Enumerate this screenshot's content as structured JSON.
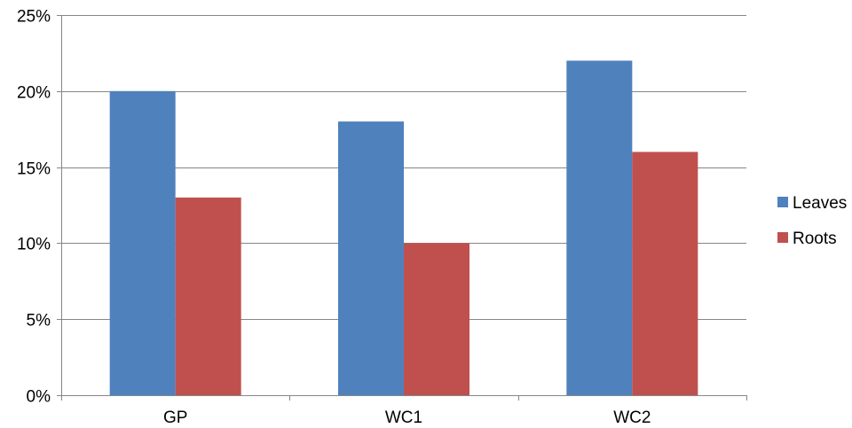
{
  "chart_data": {
    "type": "bar",
    "title": "",
    "xlabel": "",
    "ylabel": "",
    "categories": [
      "GP",
      "WC1",
      "WC2"
    ],
    "series": [
      {
        "name": "Leaves",
        "values": [
          20,
          18,
          22
        ],
        "color": "#4F81BD"
      },
      {
        "name": "Roots",
        "values": [
          13,
          10,
          16
        ],
        "color": "#C0504D"
      }
    ],
    "ylim": [
      0,
      25
    ],
    "yticks": [
      0,
      5,
      10,
      15,
      20,
      25
    ],
    "ytick_labels": [
      "0%",
      "5%",
      "10%",
      "15%",
      "20%",
      "25%"
    ],
    "grid": true,
    "legend_position": "right"
  }
}
